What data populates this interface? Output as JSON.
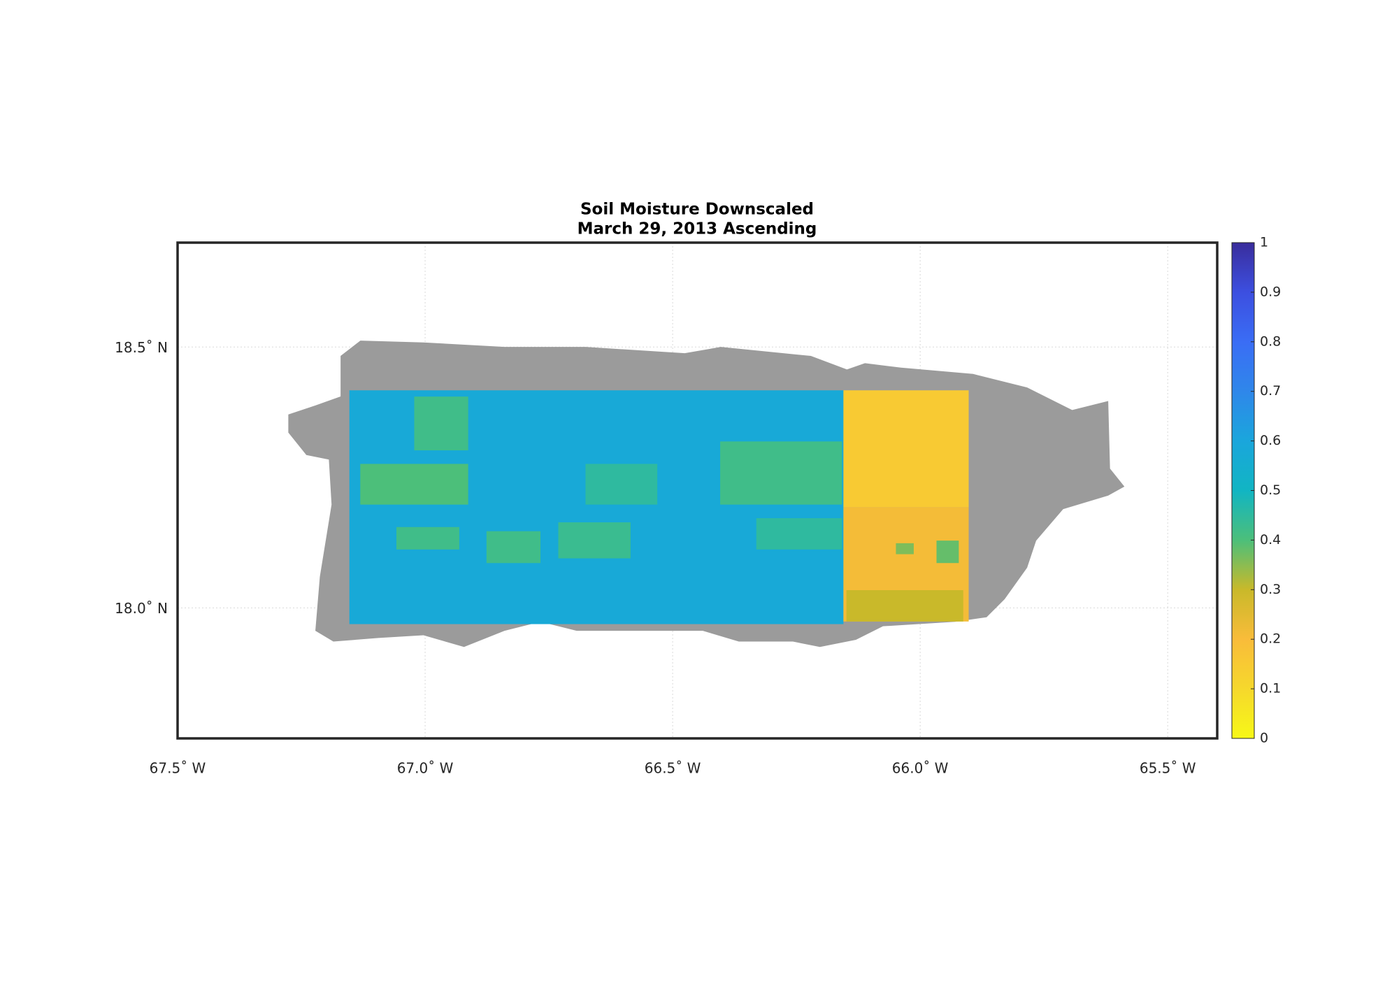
{
  "chart_data": {
    "type": "map",
    "title": "Soil Moisture Downscaled",
    "subtitle": "March 29, 2013 Ascending",
    "xlim": [
      -67.5,
      -65.4
    ],
    "ylim": [
      17.75,
      18.7
    ],
    "xticks": [
      {
        "value": -67.5,
        "label": "67.5˚ W"
      },
      {
        "value": -67.0,
        "label": "67.0˚ W"
      },
      {
        "value": -66.5,
        "label": "66.5˚ W"
      },
      {
        "value": -66.0,
        "label": "66.0˚ W"
      },
      {
        "value": -65.5,
        "label": "65.5˚ W"
      }
    ],
    "yticks": [
      {
        "value": 18.0,
        "label": "18.0˚ N"
      },
      {
        "value": 18.5,
        "label": "18.5˚ N"
      }
    ],
    "grid": true,
    "land_color": "#9b9b9b",
    "colorbar": {
      "lim": [
        0,
        1
      ],
      "ticks": [
        0,
        0.1,
        0.2,
        0.3,
        0.4,
        0.5,
        0.6,
        0.7,
        0.8,
        0.9,
        1
      ],
      "colormap": [
        "#f7f817",
        "#f6d82c",
        "#f9bc3a",
        "#c9b92a",
        "#4cbf7a",
        "#11b5c3",
        "#1aa6dc",
        "#2f87ea",
        "#3a6df5",
        "#3c4fe0",
        "#3a2d9c"
      ]
    },
    "cells": [
      {
        "lon": [
          -67.153,
          -66.155
        ],
        "lat": [
          17.969,
          18.417
        ],
        "value": 0.58
      },
      {
        "lon": [
          -66.155,
          -65.902
        ],
        "lat": [
          18.193,
          18.417
        ],
        "value": 0.15
      },
      {
        "lon": [
          -66.155,
          -65.902
        ],
        "lat": [
          17.974,
          18.193
        ],
        "value": 0.21
      },
      {
        "lon": [
          -67.022,
          -66.913
        ],
        "lat": [
          18.302,
          18.405
        ],
        "value": 0.42
      },
      {
        "lon": [
          -67.131,
          -66.913
        ],
        "lat": [
          18.198,
          18.276
        ],
        "value": 0.4
      },
      {
        "lon": [
          -67.058,
          -66.931
        ],
        "lat": [
          18.112,
          18.155
        ],
        "value": 0.42
      },
      {
        "lon": [
          -66.676,
          -66.531
        ],
        "lat": [
          18.198,
          18.276
        ],
        "value": 0.45
      },
      {
        "lon": [
          -66.876,
          -66.767
        ],
        "lat": [
          18.086,
          18.147
        ],
        "value": 0.42
      },
      {
        "lon": [
          -66.731,
          -66.585
        ],
        "lat": [
          18.095,
          18.164
        ],
        "value": 0.43
      },
      {
        "lon": [
          -66.404,
          -66.158
        ],
        "lat": [
          18.198,
          18.319
        ],
        "value": 0.42
      },
      {
        "lon": [
          -66.331,
          -66.158
        ],
        "lat": [
          18.112,
          18.172
        ],
        "value": 0.45
      },
      {
        "lon": [
          -66.049,
          -66.013
        ],
        "lat": [
          18.103,
          18.124
        ],
        "value": 0.36
      },
      {
        "lon": [
          -65.967,
          -65.922
        ],
        "lat": [
          18.086,
          18.129
        ],
        "value": 0.38
      },
      {
        "lon": [
          -66.149,
          -65.913
        ],
        "lat": [
          17.974,
          18.034
        ],
        "value": 0.3
      }
    ]
  }
}
